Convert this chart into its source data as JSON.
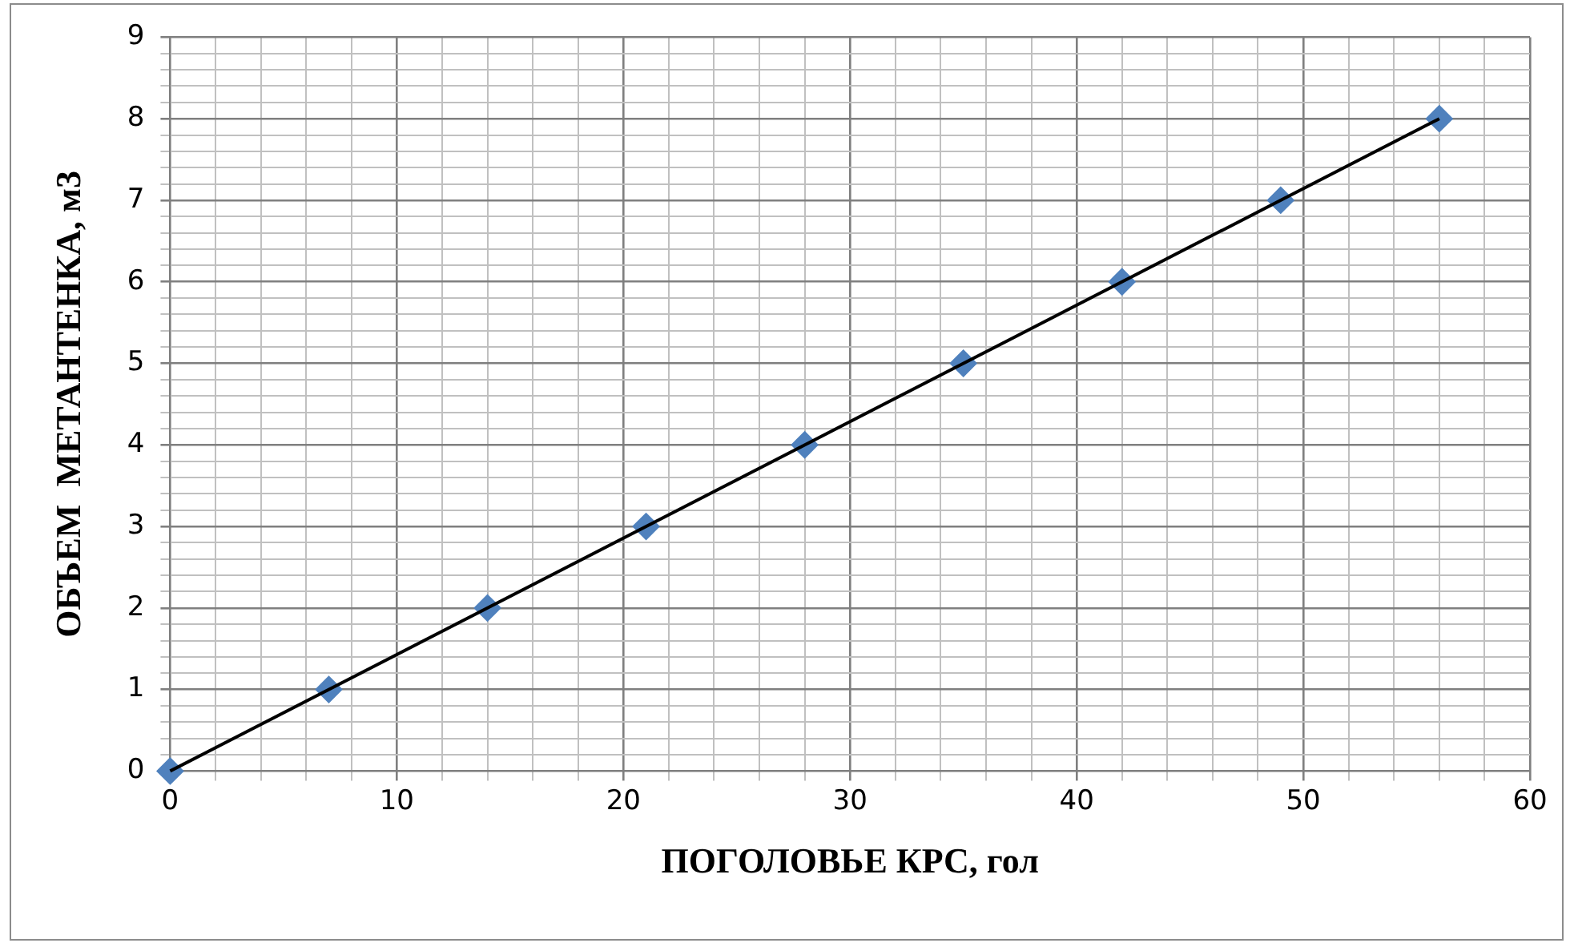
{
  "chart_data": {
    "type": "scatter",
    "xlabel": "ПОГОЛОВЬЕ КРС, гол",
    "ylabel": "ОБЪЕМ  МЕТАНТЕНКА, м3",
    "x": [
      0,
      7,
      14,
      21,
      28,
      35,
      42,
      49,
      56
    ],
    "series": [
      {
        "type": "scatter",
        "color": "#4f81bd",
        "marker": "diamond",
        "values": [
          0,
          1,
          2,
          3,
          4,
          5,
          6,
          7,
          8
        ]
      },
      {
        "type": "line",
        "color": "#000000",
        "marker": "none",
        "line_style": "solid",
        "x": [
          0,
          56
        ],
        "values": [
          0,
          8
        ]
      }
    ],
    "xlim": [
      0,
      60
    ],
    "xticks": [
      0,
      {
        "value": 2,
        "label": null
      },
      {
        "value": 4,
        "label": null
      },
      {
        "value": 6,
        "label": null
      },
      {
        "value": 8,
        "label": null
      },
      10,
      {
        "value": 12,
        "label": null
      },
      {
        "value": 14,
        "label": null
      },
      {
        "value": 16,
        "label": null
      },
      {
        "value": 18,
        "label": null
      },
      20,
      {
        "value": 22,
        "label": null
      },
      {
        "value": 24,
        "label": null
      },
      {
        "value": 26,
        "label": null
      },
      {
        "value": 28,
        "label": null
      },
      30,
      {
        "value": 32,
        "label": null
      },
      {
        "value": 34,
        "label": null
      },
      {
        "value": 36,
        "label": null
      },
      {
        "value": 38,
        "label": null
      },
      40,
      {
        "value": 42,
        "label": null
      },
      {
        "value": 44,
        "label": null
      },
      {
        "value": 46,
        "label": null
      },
      {
        "value": 48,
        "label": null
      },
      50,
      {
        "value": 52,
        "label": null
      },
      {
        "value": 54,
        "label": null
      },
      {
        "value": 56,
        "label": null
      },
      {
        "value": 58,
        "label": null
      },
      60
    ],
    "ylim": [
      0,
      9
    ],
    "yticks": [
      0,
      {
        "value": 0.2,
        "label": null
      },
      {
        "value": 0.4,
        "label": null
      },
      {
        "value": 0.6,
        "label": null
      },
      {
        "value": 0.8,
        "label": null
      },
      1,
      {
        "value": 1.2,
        "label": null
      },
      {
        "value": 1.4,
        "label": null
      },
      {
        "value": 1.6,
        "label": null
      },
      {
        "value": 1.8,
        "label": null
      },
      2,
      {
        "value": 2.2,
        "label": null
      },
      {
        "value": 2.4,
        "label": null
      },
      {
        "value": 2.6,
        "label": null
      },
      {
        "value": 2.8,
        "label": null
      },
      3,
      {
        "value": 3.2,
        "label": null
      },
      {
        "value": 3.4,
        "label": null
      },
      {
        "value": 3.6,
        "label": null
      },
      {
        "value": 3.8,
        "label": null
      },
      4,
      {
        "value": 4.2,
        "label": null
      },
      {
        "value": 4.4,
        "label": null
      },
      {
        "value": 4.6,
        "label": null
      },
      {
        "value": 4.8,
        "label": null
      },
      5,
      {
        "value": 5.2,
        "label": null
      },
      {
        "value": 5.4,
        "label": null
      },
      {
        "value": 5.6,
        "label": null
      },
      {
        "value": 5.8,
        "label": null
      },
      6,
      {
        "value": 6.2,
        "label": null
      },
      {
        "value": 6.4,
        "label": null
      },
      {
        "value": 6.6,
        "label": null
      },
      {
        "value": 6.8,
        "label": null
      },
      7,
      {
        "value": 7.2,
        "label": null
      },
      {
        "value": 7.4,
        "label": null
      },
      {
        "value": 7.6,
        "label": null
      },
      {
        "value": 7.8,
        "label": null
      },
      8,
      {
        "value": 8.2,
        "label": null
      },
      {
        "value": 8.4,
        "label": null
      },
      {
        "value": 8.6,
        "label": null
      },
      {
        "value": 8.8,
        "label": null
      },
      9
    ],
    "grid": true,
    "legend": false
  }
}
